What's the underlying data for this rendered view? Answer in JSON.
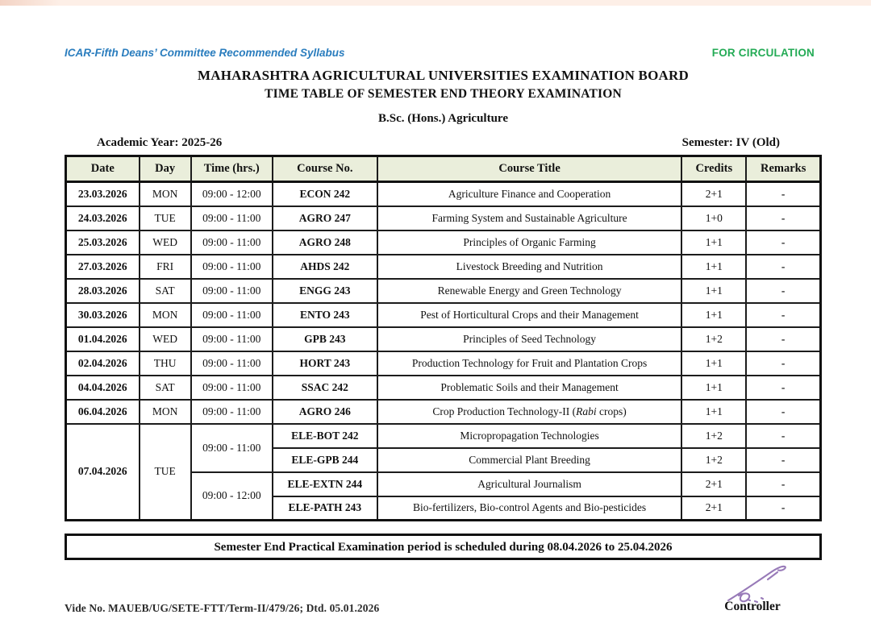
{
  "page": {
    "tagline": "ICAR-Fifth Deans’ Committee Recommended Syllabus",
    "circulation": "FOR CIRCULATION",
    "title1": "MAHARASHTRA AGRICULTURAL UNIVERSITIES EXAMINATION BOARD",
    "title2": "TIME TABLE OF SEMESTER END THEORY EXAMINATION",
    "program": "B.Sc. (Hons.) Agriculture",
    "academic_year": "Academic Year: 2025-26",
    "semester": "Semester: IV (Old)"
  },
  "table": {
    "headers": [
      "Date",
      "Day",
      "Time (hrs.)",
      "Course No.",
      "Course Title",
      "Credits",
      "Remarks"
    ],
    "rows": [
      {
        "date": "23.03.2026",
        "day": "MON",
        "time": "09:00 - 12:00",
        "course_no": "ECON 242",
        "title": "Agriculture Finance and Cooperation",
        "credits": "2+1",
        "remarks": "-"
      },
      {
        "date": "24.03.2026",
        "day": "TUE",
        "time": "09:00 - 11:00",
        "course_no": "AGRO 247",
        "title": "Farming System and Sustainable Agriculture",
        "credits": "1+0",
        "remarks": "-"
      },
      {
        "date": "25.03.2026",
        "day": "WED",
        "time": "09:00 - 11:00",
        "course_no": "AGRO 248",
        "title": "Principles of Organic Farming",
        "credits": "1+1",
        "remarks": "-"
      },
      {
        "date": "27.03.2026",
        "day": "FRI",
        "time": "09:00 - 11:00",
        "course_no": "AHDS 242",
        "title": "Livestock Breeding and Nutrition",
        "credits": "1+1",
        "remarks": "-"
      },
      {
        "date": "28.03.2026",
        "day": "SAT",
        "time": "09:00 - 11:00",
        "course_no": "ENGG 243",
        "title": "Renewable Energy and Green Technology",
        "credits": "1+1",
        "remarks": "-"
      },
      {
        "date": "30.03.2026",
        "day": "MON",
        "time": "09:00 - 11:00",
        "course_no": "ENTO 243",
        "title": "Pest of Horticultural Crops and their Management",
        "credits": "1+1",
        "remarks": "-"
      },
      {
        "date": "01.04.2026",
        "day": "WED",
        "time": "09:00 - 11:00",
        "course_no": "GPB 243",
        "title": "Principles of Seed Technology",
        "credits": "1+2",
        "remarks": "-"
      },
      {
        "date": "02.04.2026",
        "day": "THU",
        "time": "09:00 - 11:00",
        "course_no": "HORT 243",
        "title": "Production Technology for Fruit and Plantation Crops",
        "credits": "1+1",
        "remarks": "-"
      },
      {
        "date": "04.04.2026",
        "day": "SAT",
        "time": "09:00 - 11:00",
        "course_no": "SSAC 242",
        "title": "Problematic Soils and their Management",
        "credits": "1+1",
        "remarks": "-"
      },
      {
        "date": "06.04.2026",
        "day": "MON",
        "time": "09:00 - 11:00",
        "course_no": "AGRO 246",
        "title": "Crop Production Technology-II (*Rabi* crops)",
        "credits": "1+1",
        "remarks": "-"
      }
    ],
    "merged_group": {
      "date": "07.04.2026",
      "day": "TUE",
      "slots": [
        {
          "time": "09:00 - 11:00",
          "courses": [
            {
              "course_no": "ELE-BOT 242",
              "title": "Micropropagation Technologies",
              "credits": "1+2",
              "remarks": "-"
            },
            {
              "course_no": "ELE-GPB 244",
              "title": "Commercial Plant Breeding",
              "credits": "1+2",
              "remarks": "-"
            }
          ]
        },
        {
          "time": "09:00 - 12:00",
          "courses": [
            {
              "course_no": "ELE-EXTN 244",
              "title": "Agricultural Journalism",
              "credits": "2+1",
              "remarks": "-"
            },
            {
              "course_no": "ELE-PATH 243",
              "title": "Bio-fertilizers, Bio-control Agents and Bio-pesticides",
              "credits": "2+1",
              "remarks": "-"
            }
          ]
        }
      ]
    }
  },
  "banner": "Semester End Practical Examination period is scheduled during 08.04.2026 to 25.04.2026",
  "footer": {
    "vide": "Vide No. MAUEB/UG/SETE-FTT/Term-II/479/26; Dtd. 05.01.2026",
    "signatory": "Controller"
  },
  "colors": {
    "tagline_blue": "#2a7dbe",
    "circulation_green": "#24ab56",
    "header_bg": "#eaeedb",
    "signature_purple": "#8d6cb1",
    "top_stripe": "#fdefe7"
  }
}
